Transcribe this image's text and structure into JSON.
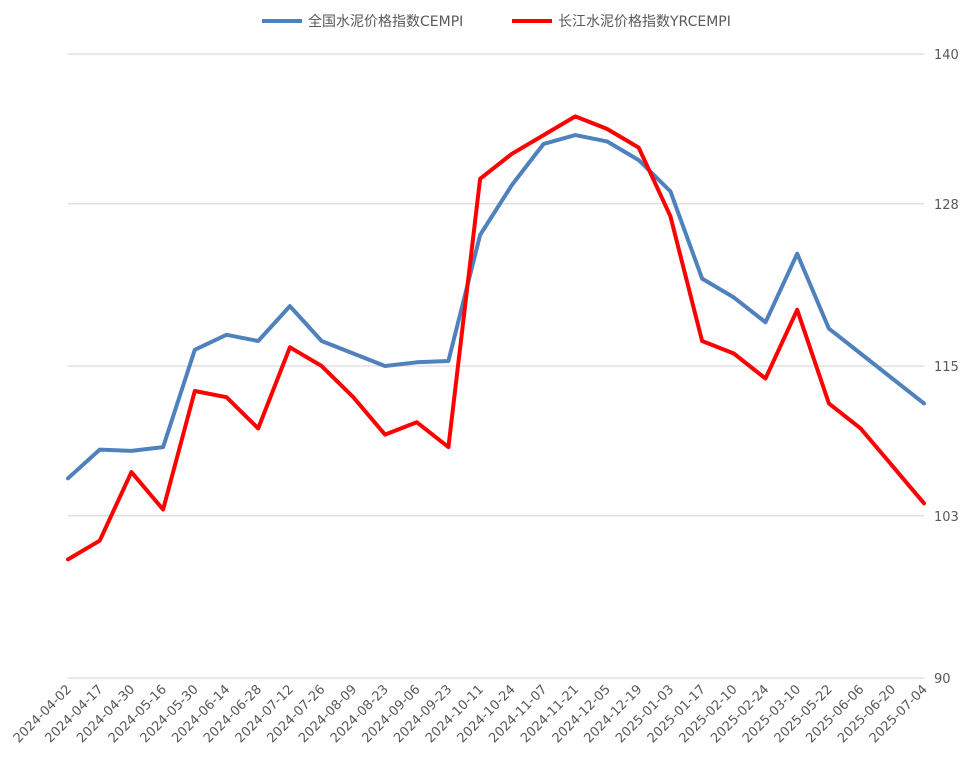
{
  "chart_data": {
    "type": "line",
    "x": [
      "2024-04-02",
      "2024-04-17",
      "2024-04-30",
      "2024-05-16",
      "2024-05-30",
      "2024-06-14",
      "2024-06-28",
      "2024-07-12",
      "2024-07-26",
      "2024-08-09",
      "2024-08-23",
      "2024-09-06",
      "2024-09-23",
      "2024-10-11",
      "2024-10-24",
      "2024-11-07",
      "2024-11-21",
      "2024-12-05",
      "2024-12-19",
      "2025-01-03",
      "2025-01-17",
      "2025-02-10",
      "2025-02-24",
      "2025-03-10",
      "2025-05-22",
      "2025-06-06",
      "2025-06-20",
      "2025-07-04"
    ],
    "y_axis": {
      "position": "right",
      "ylim": [
        90,
        140
      ],
      "ticks": [
        90,
        103,
        115,
        128,
        140
      ]
    },
    "grid": "horizontal",
    "legend": "top",
    "series": [
      {
        "name": "全国水泥价格指数CEMPI",
        "color": "#4F81BD",
        "values": [
          106.0,
          108.3,
          108.2,
          108.5,
          116.3,
          117.5,
          117.0,
          119.8,
          117.0,
          116.0,
          115.0,
          115.3,
          115.4,
          125.5,
          129.5,
          132.8,
          133.5,
          133.0,
          131.5,
          129.0,
          122.0,
          120.5,
          118.5,
          124.0,
          118.0,
          116.0,
          114.0,
          112.0
        ]
      },
      {
        "name": "长江水泥价格指数YRCEMPI",
        "color": "#FF0000",
        "values": [
          99.5,
          101.0,
          106.5,
          103.5,
          113.0,
          112.5,
          110.0,
          116.5,
          115.0,
          112.5,
          109.5,
          110.5,
          108.5,
          130.0,
          132.0,
          133.5,
          135.0,
          134.0,
          132.5,
          127.0,
          117.0,
          116.0,
          114.0,
          119.5,
          112.0,
          110.0,
          107.0,
          104.0
        ]
      }
    ]
  }
}
